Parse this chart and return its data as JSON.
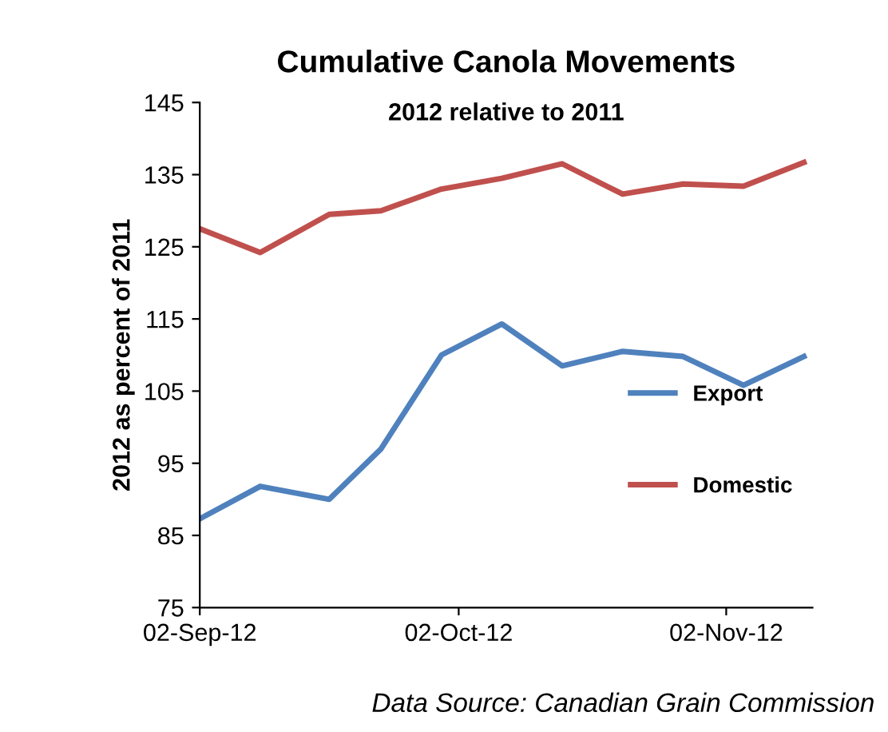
{
  "chart_data": {
    "type": "line",
    "title": "Cumulative Canola Movements",
    "subtitle": "2012 relative to 2011",
    "ylabel": "2012 as percent of 2011",
    "annotations": [
      "Data Source: Canadian Grain Commission"
    ],
    "x": [
      "2012-09-02",
      "2012-09-09",
      "2012-09-17",
      "2012-09-23",
      "2012-09-30",
      "2012-10-07",
      "2012-10-14",
      "2012-10-21",
      "2012-10-28",
      "2012-11-04",
      "2012-11-11"
    ],
    "series": [
      {
        "name": "Export",
        "color": "#4f81bd",
        "values": [
          87.3,
          91.8,
          90,
          97,
          110,
          114.3,
          108.5,
          110.5,
          109.8,
          105.8,
          109.8
        ]
      },
      {
        "name": "Domestic",
        "color": "#c0504d",
        "values": [
          127.5,
          124.2,
          129.5,
          130,
          133,
          134.5,
          136.5,
          132.3,
          133.7,
          133.4,
          136.7
        ]
      }
    ],
    "xlim": [
      "2012-09-02",
      "2012-11-12"
    ],
    "xticks": [
      {
        "value": "2012-09-02",
        "label": "02-Sep-12"
      },
      {
        "value": "2012-10-02",
        "label": "02-Oct-12"
      },
      {
        "value": "2012-11-02",
        "label": "02-Nov-12"
      }
    ],
    "ylim": [
      75,
      145
    ],
    "yticks": [
      75,
      85,
      95,
      105,
      115,
      125,
      135,
      145
    ],
    "grid": false,
    "legend": "right",
    "marker": "none",
    "line_style": "solid"
  }
}
